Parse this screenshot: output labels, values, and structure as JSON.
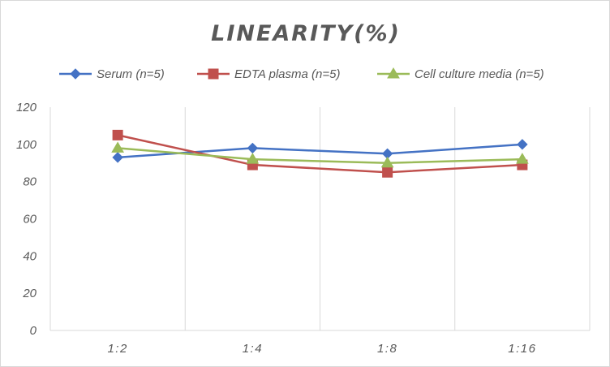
{
  "chart_data": {
    "type": "line",
    "title": "LINEARITY(%)",
    "categories": [
      "1:2",
      "1:4",
      "1:8",
      "1:16"
    ],
    "ylim": [
      0,
      120
    ],
    "yticks": [
      0,
      20,
      40,
      60,
      80,
      100,
      120
    ],
    "grid": "vertical",
    "legend_position": "top",
    "xlabel": "",
    "ylabel": "",
    "series": [
      {
        "name": "Serum (n=5)",
        "color": "#4472c4",
        "marker": "diamond",
        "values": [
          93,
          98,
          95,
          100
        ]
      },
      {
        "name": "EDTA plasma (n=5)",
        "color": "#c0504d",
        "marker": "square",
        "values": [
          105,
          89,
          85,
          89
        ]
      },
      {
        "name": "Cell culture media (n=5)",
        "color": "#9bbb59",
        "marker": "triangle",
        "values": [
          98,
          92,
          90,
          92
        ]
      }
    ]
  }
}
